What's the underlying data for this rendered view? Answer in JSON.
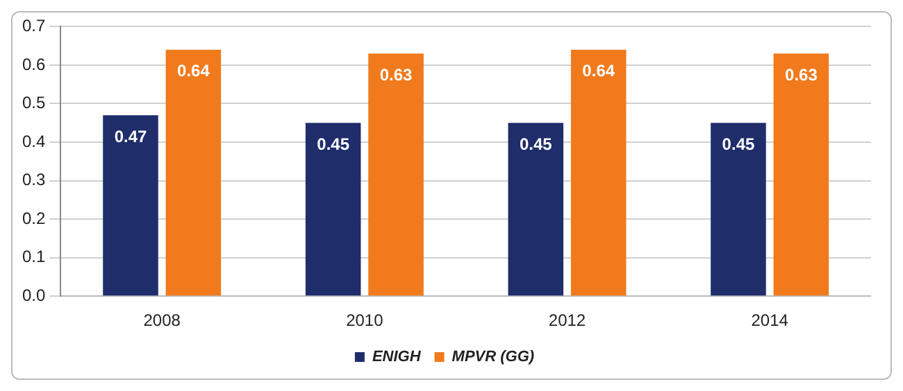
{
  "chart_data": {
    "type": "bar",
    "categories": [
      "2008",
      "2010",
      "2012",
      "2014"
    ],
    "series": [
      {
        "name": "ENIGH",
        "color": "#1f2d6b",
        "values": [
          0.47,
          0.45,
          0.45,
          0.45
        ]
      },
      {
        "name": "MPVR (GG)",
        "color": "#f07a1c",
        "values": [
          0.64,
          0.63,
          0.64,
          0.63
        ]
      }
    ],
    "ylim": [
      0,
      0.7
    ],
    "yticks": [
      {
        "value": 0,
        "label": "0.0"
      },
      0.1,
      0.2,
      0.3,
      0.4,
      0.5,
      0.6,
      0.7
    ],
    "grid": "y",
    "legend": "bottom",
    "data_labels": true
  }
}
